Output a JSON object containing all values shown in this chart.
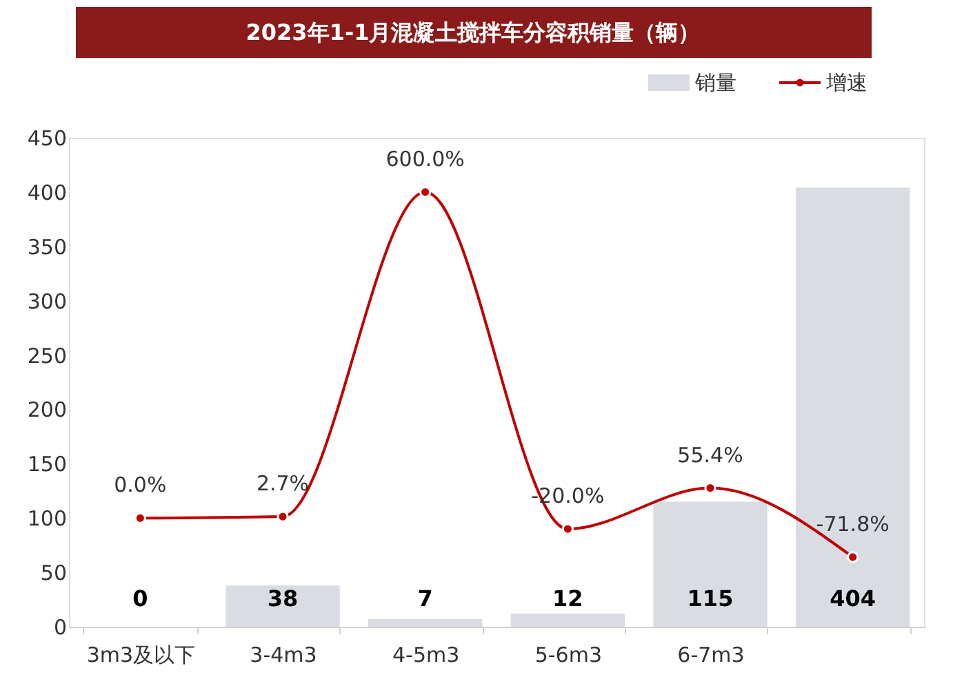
{
  "chart_data": {
    "type": "bar",
    "title": "2023年1-1月混凝土搅拌车分容积销量（辆）",
    "categories": [
      "3m3及以下",
      "3-4m3",
      "4-5m3",
      "5-6m3",
      "6-7m3",
      null
    ],
    "series": [
      {
        "name": "销量",
        "color": "#d9dce3",
        "values": [
          0,
          38,
          7,
          12,
          115,
          404
        ]
      },
      {
        "name": "增速",
        "type": "line",
        "axis": "y2",
        "color": "#c00000",
        "values": [
          0,
          2.7,
          600,
          -20,
          55.4,
          -71.8
        ],
        "value_labels": [
          "0.0%",
          "2.7%",
          "600.0%",
          "-20.0%",
          "55.4%",
          "-71.8%"
        ]
      }
    ],
    "ylim": [
      0,
      450
    ],
    "yticks": [
      0,
      50,
      100,
      150,
      200,
      250,
      300,
      350,
      400,
      450
    ],
    "y2lim": [
      -200,
      700
    ],
    "data_labels": true,
    "legend": "top right",
    "grid": false,
    "marker": "circle",
    "line_style": "solid"
  }
}
